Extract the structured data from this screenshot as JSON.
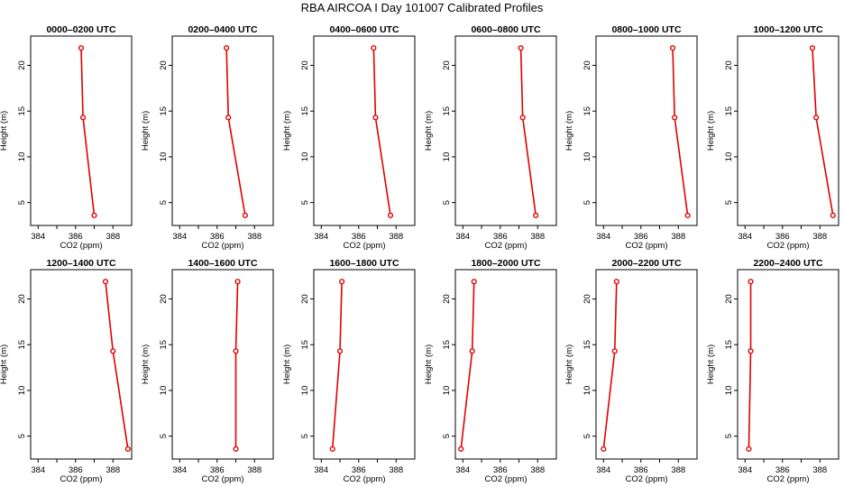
{
  "figure_title": "RBA AIRCOA I  Day 101007  Calibrated Profiles",
  "chart_data": {
    "type": "line",
    "title": "RBA AIRCOA I  Day 101007  Calibrated Profiles",
    "xlabel": "CO2 (ppm)",
    "ylabel": "Height (m)",
    "xlim": [
      383.6,
      389.0
    ],
    "ylim": [
      2.5,
      23.2
    ],
    "xticks": [
      384,
      386,
      388
    ],
    "xtick_labels": [
      "384",
      "386",
      "388"
    ],
    "yticks": [
      5,
      10,
      15,
      20
    ],
    "ytick_labels": [
      "5",
      "10",
      "15",
      "20"
    ],
    "heights": [
      21.9,
      14.3,
      3.6
    ],
    "panels": [
      {
        "title": "0000–0200 UTC",
        "co2": [
          386.3,
          386.4,
          387.0
        ]
      },
      {
        "title": "0200–0400 UTC",
        "co2": [
          386.5,
          386.6,
          387.5
        ]
      },
      {
        "title": "0400–0600 UTC",
        "co2": [
          386.8,
          386.9,
          387.7
        ]
      },
      {
        "title": "0600–0800 UTC",
        "co2": [
          387.1,
          387.2,
          387.9
        ]
      },
      {
        "title": "0800–1000 UTC",
        "co2": [
          387.7,
          387.8,
          388.5
        ]
      },
      {
        "title": "1000–1200 UTC",
        "co2": [
          387.6,
          387.8,
          388.7
        ]
      },
      {
        "title": "1200–1400 UTC",
        "co2": [
          387.6,
          388.0,
          388.8
        ]
      },
      {
        "title": "1400–1600 UTC",
        "co2": [
          387.1,
          387.0,
          387.0
        ]
      },
      {
        "title": "1600–1800 UTC",
        "co2": [
          385.1,
          385.0,
          384.6
        ]
      },
      {
        "title": "1800–2000 UTC",
        "co2": [
          384.6,
          384.5,
          383.9
        ]
      },
      {
        "title": "2000–2200 UTC",
        "co2": [
          384.7,
          384.6,
          384.0
        ]
      },
      {
        "title": "2200–2400 UTC",
        "co2": [
          384.3,
          384.3,
          384.2
        ]
      }
    ]
  },
  "colors": {
    "series": "#e00000",
    "axes": "#000000",
    "background": "#ffffff"
  }
}
